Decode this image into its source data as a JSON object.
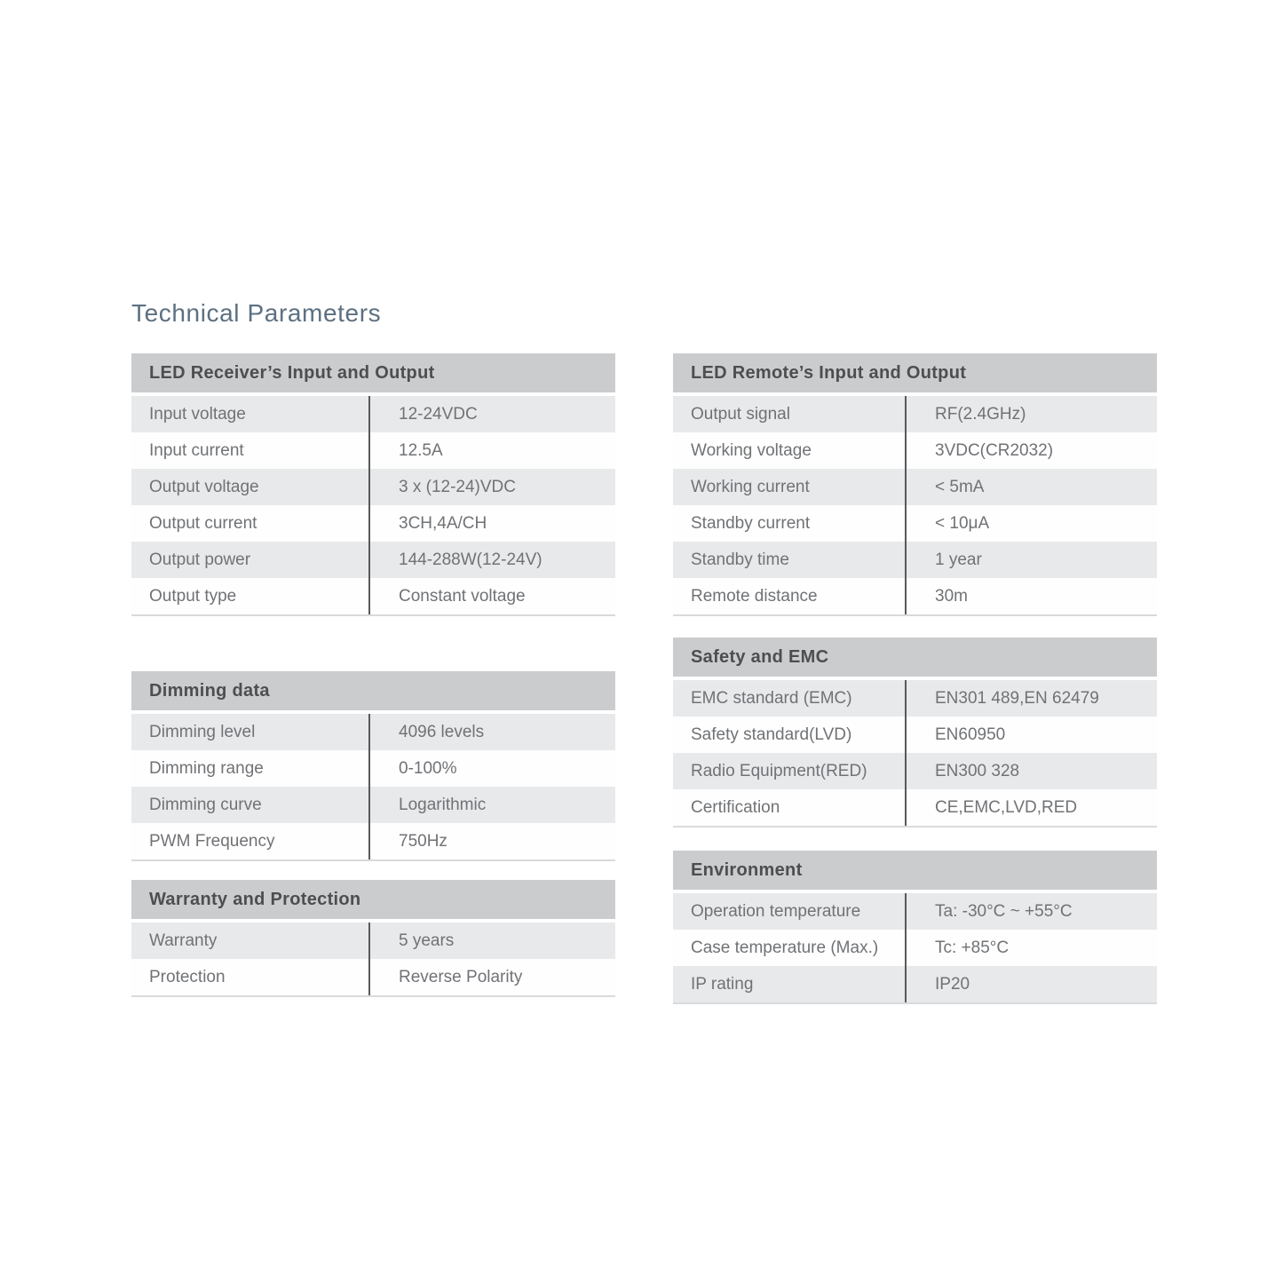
{
  "page": {
    "title": "Technical Parameters"
  },
  "colors": {
    "title_text": "#5d7081",
    "header_bg": "#cbcccd",
    "header_text": "#4c4e50",
    "row_shaded_bg": "#e8e9ea",
    "row_text": "#707275",
    "divider_line": "#58595b",
    "table_bottom_border": "#d9dadb"
  },
  "tables": [
    {
      "title": "LED Receiver’s Input and Output",
      "rows": [
        {
          "label": "Input voltage",
          "value": "12-24VDC"
        },
        {
          "label": "Input current",
          "value": "12.5A"
        },
        {
          "label": "Output voltage",
          "value": "3 x (12-24)VDC"
        },
        {
          "label": "Output current",
          "value": "3CH,4A/CH"
        },
        {
          "label": "Output power",
          "value": "144-288W(12-24V)"
        },
        {
          "label": "Output type",
          "value": "Constant voltage"
        }
      ]
    },
    {
      "title": "Dimming data",
      "rows": [
        {
          "label": "Dimming level",
          "value": "4096 levels"
        },
        {
          "label": "Dimming range",
          "value": "0-100%"
        },
        {
          "label": "Dimming curve",
          "value": "Logarithmic"
        },
        {
          "label": "PWM Frequency",
          "value": "750Hz"
        }
      ]
    },
    {
      "title": "Warranty and Protection",
      "rows": [
        {
          "label": "Warranty",
          "value": "5 years"
        },
        {
          "label": "Protection",
          "value": "Reverse Polarity"
        }
      ]
    },
    {
      "title": "LED Remote’s Input and Output",
      "rows": [
        {
          "label": "Output signal",
          "value": "RF(2.4GHz)"
        },
        {
          "label": "Working voltage",
          "value": "3VDC(CR2032)"
        },
        {
          "label": "Working current",
          "value": "< 5mA"
        },
        {
          "label": "Standby current",
          "value": "< 10μA"
        },
        {
          "label": "Standby time",
          "value": "1 year"
        },
        {
          "label": "Remote distance",
          "value": "30m"
        }
      ]
    },
    {
      "title": "Safety and EMC",
      "rows": [
        {
          "label": "EMC standard (EMC)",
          "value": "EN301 489,EN 62479"
        },
        {
          "label": "Safety standard(LVD)",
          "value": "EN60950"
        },
        {
          "label": "Radio Equipment(RED)",
          "value": "EN300 328"
        },
        {
          "label": "Certification",
          "value": "CE,EMC,LVD,RED"
        }
      ]
    },
    {
      "title": "Environment",
      "rows": [
        {
          "label": "Operation temperature",
          "value": "Ta: -30°C ~ +55°C"
        },
        {
          "label": "Case temperature (Max.)",
          "value": "Tc: +85°C"
        },
        {
          "label": "IP rating",
          "value": "IP20"
        }
      ]
    }
  ]
}
